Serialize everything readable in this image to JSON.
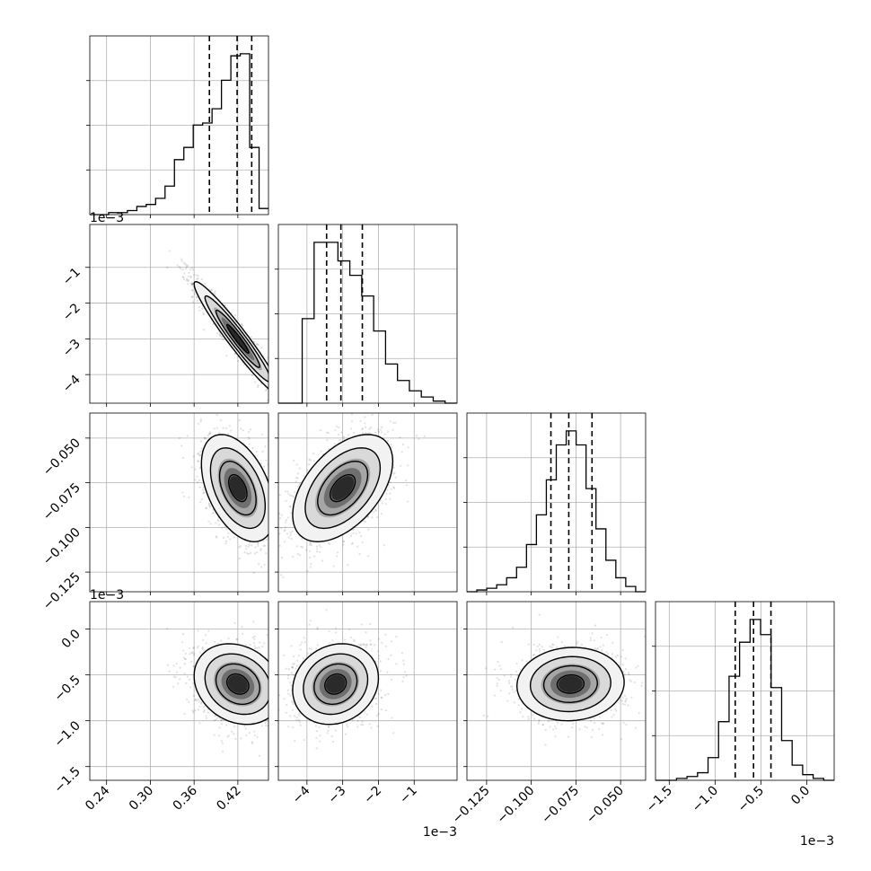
{
  "chart_data": {
    "type": "corner",
    "grid": true,
    "quantiles": [
      0.16,
      0.5,
      0.84
    ],
    "parameters": [
      {
        "range": [
          0.217,
          0.462
        ],
        "ticks": [
          0.24,
          0.3,
          0.36,
          0.42
        ],
        "tick_labels": [
          "0.24",
          "0.30",
          "0.36",
          "0.42"
        ],
        "offset_label": ""
      },
      {
        "range": [
          -4.8,
          0.2
        ],
        "ticks": [
          -4,
          -3,
          -2,
          -1
        ],
        "tick_labels": [
          "−4",
          "−3",
          "−2",
          "−1"
        ],
        "offset_label": "1e−3"
      },
      {
        "range": [
          -0.136,
          -0.036
        ],
        "ticks": [
          -0.125,
          -0.1,
          -0.075,
          -0.05
        ],
        "tick_labels": [
          "−0.125",
          "−0.100",
          "−0.075",
          "−0.050"
        ],
        "offset_label": ""
      },
      {
        "range": [
          -1.65,
          0.3
        ],
        "ticks": [
          -1.5,
          -1.0,
          -0.5,
          0.0
        ],
        "tick_labels": [
          "−1.5",
          "−1.0",
          "−0.5",
          "0.0"
        ],
        "offset_label": "1e−3"
      }
    ],
    "diagonal": [
      {
        "counts": [
          0,
          0,
          1,
          1,
          2,
          4,
          5,
          8,
          14,
          27,
          33,
          44,
          45,
          52,
          66,
          78,
          79,
          33,
          3
        ],
        "quantile_values": [
          0.381,
          0.419,
          0.439
        ]
      },
      {
        "counts": [
          0,
          0,
          41,
          78,
          78,
          69,
          62,
          52,
          35,
          19,
          11,
          6,
          3,
          1,
          0
        ],
        "quantile_values": [
          -3.45,
          -3.05,
          -2.45
        ]
      },
      {
        "counts": [
          0,
          1,
          2,
          4,
          8,
          14,
          27,
          44,
          64,
          84,
          92,
          84,
          59,
          36,
          18,
          8,
          3,
          0
        ],
        "quantile_values": [
          -0.089,
          -0.079,
          -0.066
        ]
      },
      {
        "counts": [
          0,
          0,
          1,
          2,
          4,
          12,
          31,
          55,
          73,
          85,
          77,
          49,
          21,
          8,
          3,
          1,
          0
        ],
        "quantile_values": [
          -0.78,
          -0.58,
          -0.39
        ]
      }
    ],
    "pairs": [
      {
        "x": 0,
        "y": 1,
        "mean": [
          0.42,
          -3.0
        ],
        "sd": [
          0.03,
          0.8
        ],
        "rho": -0.96
      },
      {
        "x": 0,
        "y": 2,
        "mean": [
          0.42,
          -0.078
        ],
        "sd": [
          0.025,
          0.015
        ],
        "rho": -0.45
      },
      {
        "x": 1,
        "y": 2,
        "mean": [
          -3.0,
          -0.078
        ],
        "sd": [
          0.7,
          0.015
        ],
        "rho": 0.5
      },
      {
        "x": 0,
        "y": 3,
        "mean": [
          0.42,
          -0.6
        ],
        "sd": [
          0.03,
          0.22
        ],
        "rho": -0.2
      },
      {
        "x": 1,
        "y": 3,
        "mean": [
          -3.2,
          -0.6
        ],
        "sd": [
          0.6,
          0.22
        ],
        "rho": 0.15
      },
      {
        "x": 2,
        "y": 3,
        "mean": [
          -0.078,
          -0.6
        ],
        "sd": [
          0.015,
          0.2
        ],
        "rho": 0.05
      }
    ]
  },
  "colors": {
    "axis": "#000000",
    "grid": "#b0b0b0",
    "points": "#000000"
  }
}
